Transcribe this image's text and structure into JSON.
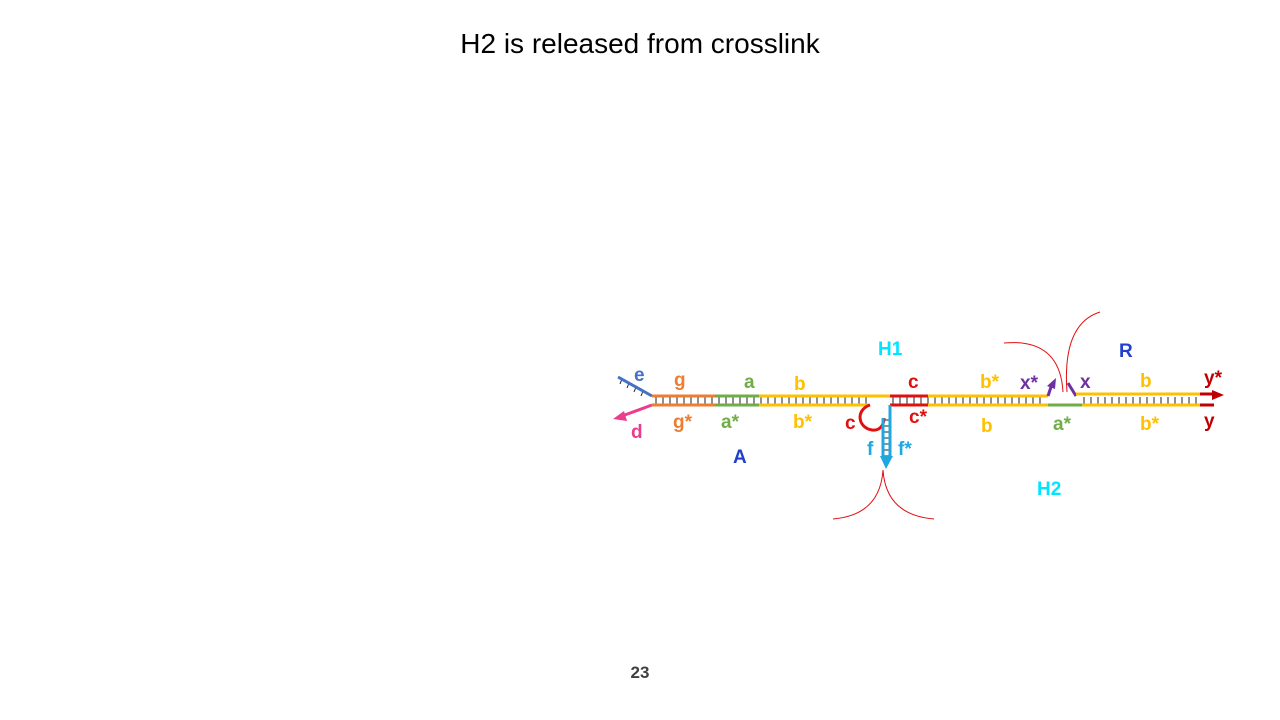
{
  "slide": {
    "title": "H2 is released from crosslink",
    "page_number": "23"
  },
  "labels": {
    "e": "e",
    "d": "d",
    "g": "g",
    "g_star": "g*",
    "a": "a",
    "a_star": "a*",
    "b": "b",
    "b_star": "b*",
    "H1": "H1",
    "c": "c",
    "c_star": "c*",
    "c_loop": "c",
    "f": "f",
    "f_star": "f*",
    "A": "A",
    "b_star_2": "b*",
    "b_2": "b",
    "a_star_2": "a*",
    "H2": "H2",
    "x_star": "x*",
    "x": "x",
    "R": "R",
    "b_3": "b",
    "b_star_3": "b*",
    "y_star": "y*",
    "y": "y"
  },
  "colors": {
    "e": "#4472c4",
    "d": "#ec3d8c",
    "g": "#ed7d31",
    "a": "#70ad47",
    "b": "#ffc000",
    "c": "#e01010",
    "f": "#1fa8e0",
    "x": "#7030a0",
    "y": "#c00000",
    "A": "#1f3fcc",
    "R": "#1f3fcc",
    "H": "#00e5ff"
  }
}
